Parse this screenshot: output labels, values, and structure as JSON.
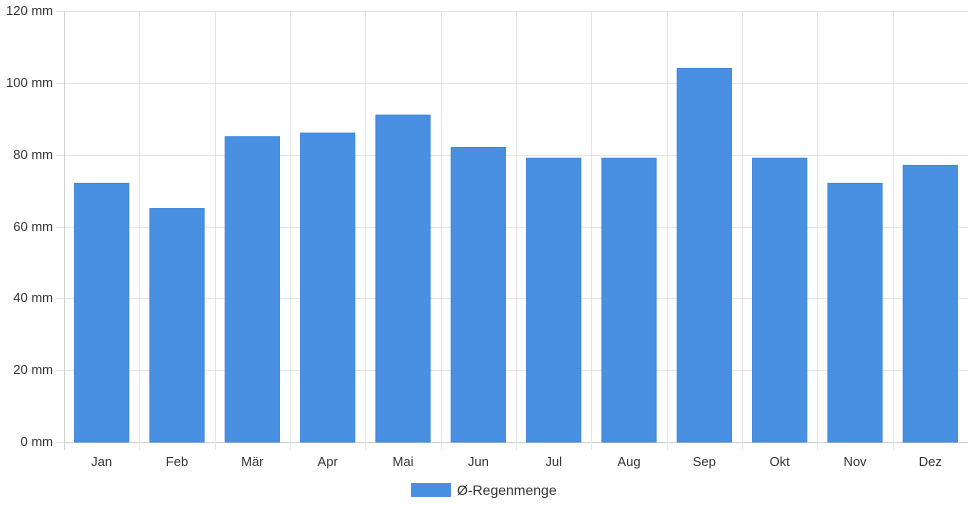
{
  "chart_data": {
    "type": "bar",
    "categories": [
      "Jan",
      "Feb",
      "Mär",
      "Apr",
      "Mai",
      "Jun",
      "Jul",
      "Aug",
      "Sep",
      "Okt",
      "Nov",
      "Dez"
    ],
    "series": [
      {
        "name": "Ø-Regenmenge",
        "color": "#4a90e2",
        "values": [
          72,
          65,
          85,
          86,
          91,
          82,
          79,
          79,
          104,
          79,
          72,
          77
        ]
      }
    ],
    "ylim": [
      0,
      120
    ],
    "yticks": [
      0,
      20,
      40,
      60,
      80,
      100,
      120
    ],
    "ytick_labels": [
      "0 mm",
      "20 mm",
      "40 mm",
      "60 mm",
      "80 mm",
      "100 mm",
      "120 mm"
    ],
    "grid": true,
    "legend_position": "bottom-center"
  }
}
